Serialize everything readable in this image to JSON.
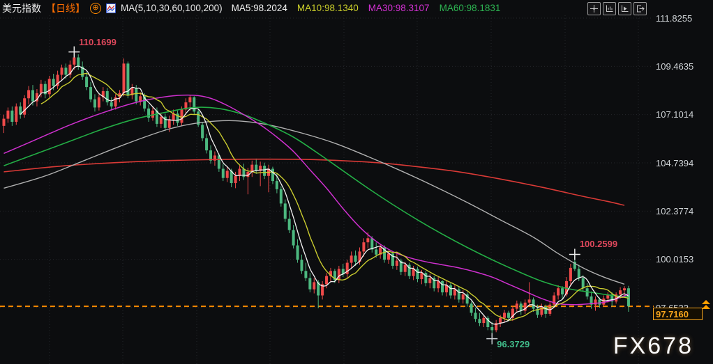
{
  "header": {
    "symbol": "美元指数",
    "timeframe": "【日线】",
    "expand_icon": "⊕",
    "indicator_icon": "mini-line-chart-icon",
    "ma_group_label": "MA(5,10,30,60,100,200)",
    "ma_values": [
      {
        "label": "MA5:98.2024",
        "color": "#f2f2f2"
      },
      {
        "label": "MA10:98.1340",
        "color": "#cdd12b"
      },
      {
        "label": "MA30:98.3107",
        "color": "#d431d4"
      },
      {
        "label": "MA60:98.1831",
        "color": "#2db552"
      }
    ],
    "toolbar": [
      {
        "icon": "move-crosshair-icon"
      },
      {
        "icon": "axis-scale-icon"
      },
      {
        "icon": "auto-scroll-icon"
      },
      {
        "icon": "exit-chart-icon"
      }
    ]
  },
  "axis": {
    "ticks": [
      "111.8255",
      "109.4635",
      "107.1014",
      "104.7394",
      "102.3774",
      "100.0153",
      "97.6533"
    ]
  },
  "price_marker": {
    "value": "97.7160"
  },
  "annotations": [
    {
      "text": "110.1699",
      "value": 110.1699,
      "index": 17,
      "type": "high",
      "color": "#e0485c"
    },
    {
      "text": "100.2599",
      "value": 100.2599,
      "index": 138,
      "type": "high",
      "color": "#e0485c"
    },
    {
      "text": "96.3729",
      "value": 96.3729,
      "index": 118,
      "type": "low",
      "color": "#41bd8b"
    }
  ],
  "watermark": "FX678",
  "chart_data": {
    "type": "candlestick",
    "title": "美元指数 日线 (US Dollar Index, daily)",
    "convention": "red = up (close>=open), green = down (Chinese convention)",
    "y_ticks": [
      111.8255,
      109.4635,
      107.1014,
      104.7394,
      102.3774,
      100.0153,
      97.6533
    ],
    "current_price": 97.716,
    "period_high": 110.1699,
    "period_low": 96.3729,
    "recent_high": 100.2599,
    "legend": {
      "MA5": 98.2024,
      "MA10": 98.134,
      "MA30": 98.3107,
      "MA60": 98.1831
    },
    "colors": {
      "up": "#ef4a4a",
      "down": "#4cb87f",
      "ma5": "#f2f2f2",
      "ma10": "#c9cb2f",
      "ma30": "#cf30cf",
      "ma60": "#23ad45",
      "ma100": "#b0b0b0",
      "ma200": "#d93a36",
      "price_line": "#ff8a00",
      "grid": "#24262b",
      "axis_text": "#cfd3d6"
    },
    "candles": [
      [
        106.55,
        107.1,
        106.2,
        106.9
      ],
      [
        106.9,
        107.45,
        106.7,
        107.3
      ],
      [
        107.3,
        107.5,
        106.55,
        106.75
      ],
      [
        106.75,
        107.65,
        106.6,
        107.5
      ],
      [
        107.5,
        107.7,
        106.9,
        107.1
      ],
      [
        107.1,
        108.05,
        106.95,
        107.9
      ],
      [
        107.9,
        108.5,
        107.6,
        108.3
      ],
      [
        108.3,
        108.55,
        107.55,
        107.75
      ],
      [
        107.75,
        108.35,
        107.5,
        108.15
      ],
      [
        108.15,
        108.8,
        107.95,
        108.6
      ],
      [
        108.6,
        108.75,
        107.9,
        108.1
      ],
      [
        108.1,
        109.0,
        107.95,
        108.85
      ],
      [
        108.85,
        109.1,
        108.3,
        108.5
      ],
      [
        108.5,
        109.25,
        108.35,
        109.05
      ],
      [
        109.05,
        109.55,
        108.8,
        109.4
      ],
      [
        109.4,
        109.6,
        108.85,
        109.05
      ],
      [
        109.05,
        109.75,
        108.9,
        109.55
      ],
      [
        109.55,
        110.17,
        109.3,
        109.9
      ],
      [
        109.9,
        110.05,
        109.3,
        109.45
      ],
      [
        109.45,
        109.7,
        108.8,
        108.95
      ],
      [
        108.95,
        109.2,
        108.3,
        108.45
      ],
      [
        108.45,
        108.7,
        107.7,
        107.85
      ],
      [
        107.85,
        108.1,
        107.25,
        107.45
      ],
      [
        107.45,
        108.1,
        107.3,
        107.95
      ],
      [
        107.95,
        108.45,
        107.75,
        108.25
      ],
      [
        108.25,
        108.4,
        107.55,
        107.7
      ],
      [
        107.7,
        107.95,
        107.3,
        107.5
      ],
      [
        107.5,
        108.1,
        107.35,
        107.95
      ],
      [
        107.95,
        108.3,
        107.7,
        108.15
      ],
      [
        108.15,
        109.85,
        108.0,
        109.6
      ],
      [
        109.6,
        109.7,
        107.9,
        108.05
      ],
      [
        108.05,
        108.6,
        107.85,
        108.4
      ],
      [
        108.4,
        108.55,
        107.6,
        107.75
      ],
      [
        107.75,
        108.2,
        107.55,
        108.0
      ],
      [
        108.0,
        108.15,
        107.25,
        107.4
      ],
      [
        107.4,
        107.6,
        106.75,
        106.95
      ],
      [
        106.95,
        107.5,
        106.8,
        107.3
      ],
      [
        107.3,
        107.45,
        106.5,
        106.65
      ],
      [
        106.65,
        107.2,
        106.45,
        107.0
      ],
      [
        107.0,
        107.15,
        106.3,
        106.45
      ],
      [
        106.45,
        107.05,
        106.25,
        106.85
      ],
      [
        106.85,
        107.35,
        106.6,
        107.15
      ],
      [
        107.15,
        107.3,
        106.55,
        106.7
      ],
      [
        106.7,
        107.5,
        106.55,
        107.35
      ],
      [
        107.35,
        107.9,
        107.1,
        107.7
      ],
      [
        107.7,
        108.05,
        107.3,
        107.95
      ],
      [
        107.95,
        108.0,
        107.1,
        107.25
      ],
      [
        107.25,
        107.4,
        106.5,
        106.6
      ],
      [
        106.6,
        106.75,
        105.8,
        105.95
      ],
      [
        105.95,
        106.15,
        105.2,
        105.35
      ],
      [
        105.35,
        105.6,
        104.7,
        104.85
      ],
      [
        104.85,
        105.3,
        104.6,
        105.1
      ],
      [
        105.1,
        105.2,
        104.3,
        104.45
      ],
      [
        104.45,
        104.7,
        103.85,
        104.0
      ],
      [
        104.0,
        104.55,
        103.8,
        104.35
      ],
      [
        104.35,
        104.45,
        103.55,
        103.75
      ],
      [
        103.75,
        104.3,
        103.5,
        104.1
      ],
      [
        104.1,
        104.6,
        103.85,
        104.45
      ],
      [
        104.45,
        104.7,
        103.9,
        104.05
      ],
      [
        104.05,
        104.5,
        103.2,
        104.3
      ],
      [
        104.3,
        104.85,
        104.05,
        104.65
      ],
      [
        104.65,
        104.95,
        104.2,
        104.35
      ],
      [
        104.35,
        104.8,
        103.6,
        104.6
      ],
      [
        104.6,
        104.75,
        103.95,
        104.1
      ],
      [
        104.1,
        104.65,
        103.3,
        104.45
      ],
      [
        104.45,
        104.55,
        103.7,
        103.85
      ],
      [
        103.85,
        104.2,
        103.25,
        103.45
      ],
      [
        103.45,
        103.6,
        102.6,
        102.75
      ],
      [
        102.75,
        102.95,
        101.85,
        102.0
      ],
      [
        102.0,
        102.4,
        101.3,
        101.45
      ],
      [
        101.45,
        101.7,
        100.55,
        100.7
      ],
      [
        100.7,
        101.0,
        99.85,
        100.0
      ],
      [
        100.0,
        100.25,
        99.3,
        99.45
      ],
      [
        99.45,
        99.85,
        98.95,
        99.1
      ],
      [
        99.1,
        99.35,
        98.4,
        98.55
      ],
      [
        98.55,
        99.1,
        98.35,
        98.9
      ],
      [
        98.9,
        99.0,
        97.62,
        98.25
      ],
      [
        98.25,
        98.95,
        98.05,
        98.8
      ],
      [
        98.8,
        99.35,
        98.6,
        99.2
      ],
      [
        99.2,
        99.6,
        98.9,
        99.45
      ],
      [
        99.45,
        99.55,
        98.85,
        99.0
      ],
      [
        99.0,
        99.7,
        98.85,
        99.55
      ],
      [
        99.55,
        99.8,
        99.15,
        99.3
      ],
      [
        99.3,
        100.0,
        99.1,
        99.85
      ],
      [
        99.85,
        100.4,
        99.6,
        100.2
      ],
      [
        100.2,
        100.45,
        99.7,
        99.9
      ],
      [
        99.9,
        100.6,
        99.75,
        100.4
      ],
      [
        100.4,
        101.05,
        100.15,
        100.85
      ],
      [
        100.85,
        101.35,
        100.55,
        101.05
      ],
      [
        101.05,
        101.15,
        100.35,
        100.5
      ],
      [
        100.5,
        100.85,
        100.1,
        100.25
      ],
      [
        100.25,
        100.75,
        100.05,
        100.6
      ],
      [
        100.6,
        100.7,
        99.85,
        100.0
      ],
      [
        100.0,
        100.45,
        99.8,
        100.3
      ],
      [
        100.3,
        100.4,
        99.55,
        99.7
      ],
      [
        99.7,
        100.4,
        99.5,
        99.95
      ],
      [
        99.95,
        100.05,
        99.25,
        99.4
      ],
      [
        99.4,
        99.9,
        99.2,
        99.75
      ],
      [
        99.75,
        99.85,
        99.05,
        99.2
      ],
      [
        99.2,
        99.7,
        99.0,
        99.55
      ],
      [
        99.55,
        99.65,
        98.9,
        99.05
      ],
      [
        99.05,
        99.5,
        98.8,
        99.35
      ],
      [
        99.35,
        99.45,
        98.7,
        98.85
      ],
      [
        98.85,
        99.3,
        98.6,
        99.1
      ],
      [
        99.1,
        99.2,
        98.45,
        98.6
      ],
      [
        98.6,
        99.15,
        98.4,
        98.95
      ],
      [
        98.95,
        99.0,
        98.25,
        98.4
      ],
      [
        98.4,
        98.95,
        98.2,
        98.75
      ],
      [
        98.75,
        98.85,
        98.1,
        98.25
      ],
      [
        98.25,
        98.75,
        98.05,
        98.55
      ],
      [
        98.55,
        98.65,
        97.9,
        98.05
      ],
      [
        98.05,
        98.5,
        97.85,
        98.3
      ],
      [
        98.3,
        98.4,
        97.7,
        97.85
      ],
      [
        97.85,
        97.95,
        97.25,
        97.4
      ],
      [
        97.4,
        97.65,
        96.95,
        97.1
      ],
      [
        97.1,
        97.4,
        96.75,
        96.9
      ],
      [
        96.9,
        97.3,
        96.7,
        97.15
      ],
      [
        97.15,
        97.25,
        96.55,
        96.7
      ],
      [
        96.7,
        96.95,
        96.37,
        96.55
      ],
      [
        96.55,
        97.05,
        96.45,
        96.9
      ],
      [
        96.9,
        97.3,
        96.7,
        97.15
      ],
      [
        97.15,
        97.55,
        96.95,
        97.4
      ],
      [
        97.4,
        97.5,
        96.98,
        97.15
      ],
      [
        97.15,
        97.75,
        97.0,
        97.6
      ],
      [
        97.6,
        98.0,
        97.4,
        97.85
      ],
      [
        97.85,
        97.95,
        97.3,
        97.5
      ],
      [
        97.5,
        98.05,
        97.35,
        97.9
      ],
      [
        97.9,
        98.9,
        97.7,
        98.05
      ],
      [
        98.05,
        98.15,
        97.45,
        97.6
      ],
      [
        97.6,
        97.8,
        97.15,
        97.3
      ],
      [
        97.3,
        97.85,
        97.2,
        97.7
      ],
      [
        97.7,
        97.8,
        97.15,
        97.35
      ],
      [
        97.35,
        97.95,
        97.25,
        97.8
      ],
      [
        97.8,
        98.4,
        97.65,
        98.25
      ],
      [
        98.25,
        98.75,
        98.05,
        98.6
      ],
      [
        98.6,
        98.7,
        98.1,
        98.3
      ],
      [
        98.3,
        99.15,
        98.2,
        98.95
      ],
      [
        98.95,
        99.8,
        98.75,
        99.6
      ],
      [
        99.9,
        100.26,
        99.45,
        99.55
      ],
      [
        99.55,
        99.75,
        98.95,
        99.1
      ],
      [
        99.1,
        99.25,
        98.45,
        98.6
      ],
      [
        98.6,
        98.85,
        98.05,
        98.2
      ],
      [
        98.2,
        98.45,
        97.6,
        97.8
      ],
      [
        97.8,
        98.2,
        97.5,
        98.05
      ],
      [
        98.05,
        98.15,
        97.65,
        97.8
      ],
      [
        97.8,
        98.25,
        97.7,
        98.1
      ],
      [
        98.1,
        98.4,
        97.9,
        98.3
      ],
      [
        98.3,
        98.4,
        97.7,
        97.95
      ],
      [
        97.95,
        98.4,
        97.85,
        98.3
      ],
      [
        98.3,
        98.65,
        98.1,
        98.5
      ],
      [
        98.5,
        98.7,
        98.25,
        98.6
      ],
      [
        98.6,
        98.72,
        97.45,
        97.716
      ]
    ],
    "ma_overlays": {
      "MA5": {
        "window": 5,
        "computed_from_closes": true
      },
      "MA10": {
        "window": 10,
        "computed_from_closes": true
      },
      "MA30": {
        "points": [
          [
            0,
            105.2
          ],
          [
            8,
            105.9
          ],
          [
            16,
            106.6
          ],
          [
            24,
            107.2
          ],
          [
            32,
            107.7
          ],
          [
            40,
            108.0
          ],
          [
            46,
            108.05
          ],
          [
            50,
            107.9
          ],
          [
            54,
            107.55
          ],
          [
            58,
            107.1
          ],
          [
            62,
            106.6
          ],
          [
            66,
            106.0
          ],
          [
            70,
            105.3
          ],
          [
            74,
            104.4
          ],
          [
            78,
            103.5
          ],
          [
            82,
            102.5
          ],
          [
            86,
            101.6
          ],
          [
            90,
            100.9
          ],
          [
            94,
            100.4
          ],
          [
            98,
            100.1
          ],
          [
            102,
            99.9
          ],
          [
            106,
            99.75
          ],
          [
            110,
            99.6
          ],
          [
            114,
            99.4
          ],
          [
            118,
            99.15
          ],
          [
            122,
            98.8
          ],
          [
            126,
            98.45
          ],
          [
            130,
            98.1
          ],
          [
            134,
            97.85
          ],
          [
            138,
            97.8
          ],
          [
            142,
            97.85
          ],
          [
            146,
            97.95
          ],
          [
            151,
            98.31
          ]
        ]
      },
      "MA60": {
        "points": [
          [
            0,
            104.6
          ],
          [
            8,
            105.2
          ],
          [
            16,
            105.8
          ],
          [
            24,
            106.4
          ],
          [
            32,
            106.9
          ],
          [
            40,
            107.25
          ],
          [
            46,
            107.45
          ],
          [
            52,
            107.4
          ],
          [
            58,
            107.1
          ],
          [
            64,
            106.6
          ],
          [
            70,
            106.0
          ],
          [
            76,
            105.2
          ],
          [
            82,
            104.35
          ],
          [
            88,
            103.5
          ],
          [
            94,
            102.7
          ],
          [
            100,
            101.95
          ],
          [
            106,
            101.25
          ],
          [
            112,
            100.6
          ],
          [
            118,
            100.0
          ],
          [
            124,
            99.45
          ],
          [
            130,
            98.95
          ],
          [
            136,
            98.6
          ],
          [
            142,
            98.4
          ],
          [
            147,
            98.25
          ],
          [
            151,
            98.18
          ]
        ]
      },
      "MA100": {
        "points": [
          [
            0,
            103.5
          ],
          [
            10,
            104.1
          ],
          [
            20,
            104.9
          ],
          [
            30,
            105.7
          ],
          [
            40,
            106.4
          ],
          [
            48,
            106.72
          ],
          [
            56,
            106.8
          ],
          [
            64,
            106.6
          ],
          [
            72,
            106.2
          ],
          [
            80,
            105.7
          ],
          [
            88,
            105.05
          ],
          [
            96,
            104.35
          ],
          [
            104,
            103.6
          ],
          [
            112,
            102.8
          ],
          [
            120,
            101.95
          ],
          [
            128,
            101.1
          ],
          [
            134,
            100.3
          ],
          [
            140,
            99.6
          ],
          [
            145,
            99.15
          ],
          [
            150,
            98.8
          ]
        ]
      },
      "MA200": {
        "points": [
          [
            0,
            104.3
          ],
          [
            15,
            104.6
          ],
          [
            30,
            104.78
          ],
          [
            45,
            104.88
          ],
          [
            60,
            104.92
          ],
          [
            75,
            104.9
          ],
          [
            90,
            104.75
          ],
          [
            100,
            104.55
          ],
          [
            110,
            104.3
          ],
          [
            120,
            103.95
          ],
          [
            130,
            103.55
          ],
          [
            140,
            103.1
          ],
          [
            146,
            102.85
          ],
          [
            150,
            102.66
          ]
        ]
      }
    }
  }
}
